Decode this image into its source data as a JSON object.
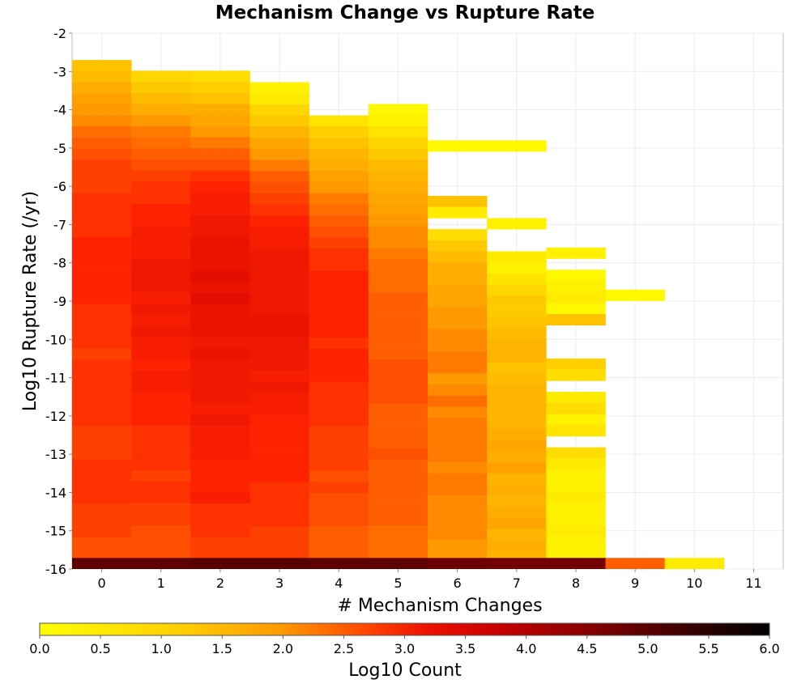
{
  "chart_data": {
    "type": "heatmap",
    "title": "Mechanism Change vs Rupture Rate",
    "xlabel": "# Mechanism Changes",
    "ylabel": "Log10 Rupture Rate (/yr)",
    "colorbar_label": "Log10 Count",
    "x_ticks": [
      "0",
      "1",
      "2",
      "3",
      "4",
      "5",
      "6",
      "7",
      "8",
      "9",
      "10",
      "11"
    ],
    "y_ticks": [
      "-2",
      "-3",
      "-4",
      "-5",
      "-6",
      "-7",
      "-8",
      "-9",
      "-10",
      "-11",
      "-12",
      "-13",
      "-14",
      "-15",
      "-16"
    ],
    "colorbar_ticks": [
      "0.0",
      "0.5",
      "1.0",
      "1.5",
      "2.0",
      "2.5",
      "3.0",
      "3.5",
      "4.0",
      "4.5",
      "5.0",
      "5.5",
      "6.0"
    ],
    "xlim": [
      -0.5,
      11.5
    ],
    "ylim": [
      -16,
      -2
    ],
    "colorbar_range": [
      0,
      6
    ],
    "grid": true,
    "colorscale": [
      "#ffff00",
      "#ff9900",
      "#ff2200",
      "#cc0000",
      "#880000",
      "#000000"
    ],
    "bin_height": 0.29,
    "columns": [
      {
        "x": 0,
        "top": -2.7,
        "values": [
          0.9,
          1.0,
          1.2,
          1.4,
          1.5,
          1.6,
          1.8,
          1.9,
          2.0,
          2.1,
          2.1,
          2.1,
          2.2,
          2.2,
          2.2,
          2.2,
          2.3,
          2.3,
          2.3,
          2.3,
          2.3,
          2.3,
          2.2,
          2.2,
          2.2,
          2.2,
          2.1,
          2.2,
          2.2,
          2.2,
          2.2,
          2.2,
          2.2,
          2.1,
          2.1,
          2.1,
          2.2,
          2.2,
          2.2,
          2.2,
          2.1,
          2.1,
          2.1,
          2.0,
          2.0,
          2.0,
          2.0
        ]
      },
      {
        "x": 1,
        "top": -2.98,
        "values": [
          0.6,
          0.8,
          1.0,
          1.2,
          1.5,
          1.7,
          1.8,
          1.9,
          2.0,
          2.1,
          2.2,
          2.2,
          2.3,
          2.3,
          2.4,
          2.4,
          2.4,
          2.5,
          2.5,
          2.5,
          2.4,
          2.5,
          2.4,
          2.5,
          2.4,
          2.4,
          2.3,
          2.4,
          2.4,
          2.3,
          2.3,
          2.3,
          2.2,
          2.2,
          2.2,
          2.2,
          2.1,
          2.2,
          2.2,
          2.1,
          2.1,
          2.0,
          2.0,
          2.0,
          1.9,
          1.9
        ]
      },
      {
        "x": 2,
        "top": -2.98,
        "values": [
          0.5,
          0.7,
          0.9,
          1.2,
          1.3,
          1.5,
          1.7,
          1.9,
          2.0,
          2.2,
          2.3,
          2.4,
          2.4,
          2.5,
          2.5,
          2.6,
          2.6,
          2.6,
          2.7,
          2.6,
          2.7,
          2.6,
          2.6,
          2.6,
          2.5,
          2.6,
          2.5,
          2.5,
          2.5,
          2.5,
          2.4,
          2.5,
          2.4,
          2.4,
          2.4,
          2.3,
          2.3,
          2.3,
          2.4,
          2.2,
          2.2,
          2.2,
          2.1,
          2.1,
          2.0,
          2.0
        ]
      },
      {
        "x": 3,
        "top": -3.28,
        "values": [
          0.2,
          0.3,
          0.6,
          0.8,
          1.1,
          1.3,
          1.5,
          1.7,
          1.9,
          2.0,
          2.1,
          2.2,
          2.3,
          2.4,
          2.4,
          2.5,
          2.5,
          2.5,
          2.5,
          2.5,
          2.5,
          2.6,
          2.6,
          2.5,
          2.5,
          2.5,
          2.4,
          2.5,
          2.4,
          2.4,
          2.3,
          2.3,
          2.3,
          2.3,
          2.3,
          2.3,
          2.2,
          2.2,
          2.2,
          2.2,
          2.1,
          2.1,
          2.1,
          2.1,
          2.0
        ]
      },
      {
        "x": 4,
        "top": -4.15,
        "values": [
          0.4,
          0.7,
          0.9,
          1.1,
          1.2,
          1.4,
          1.5,
          1.7,
          1.8,
          1.9,
          2.0,
          2.1,
          2.2,
          2.2,
          2.3,
          2.3,
          2.3,
          2.3,
          2.3,
          2.3,
          2.2,
          2.3,
          2.3,
          2.3,
          2.2,
          2.2,
          2.2,
          2.2,
          2.1,
          2.1,
          2.1,
          2.1,
          2.0,
          2.1,
          2.0,
          2.0,
          2.0,
          1.9,
          1.9,
          1.9,
          1.9,
          1.9
        ]
      },
      {
        "x": 5,
        "top": -3.85,
        "values": [
          0.1,
          0.2,
          0.4,
          0.6,
          0.8,
          1.0,
          1.1,
          1.2,
          1.3,
          1.4,
          1.5,
          1.6,
          1.6,
          1.7,
          1.8,
          1.8,
          1.8,
          1.9,
          1.9,
          1.9,
          1.9,
          1.9,
          1.9,
          2.0,
          2.0,
          2.0,
          2.0,
          1.9,
          1.9,
          1.9,
          1.9,
          2.0,
          1.9,
          1.9,
          1.9,
          1.9,
          1.9,
          1.9,
          1.8,
          1.8,
          1.8,
          1.7,
          1.7
        ]
      },
      {
        "x": 6,
        "top": -4.8,
        "values": [
          0.1,
          null,
          null,
          null,
          null,
          0.9,
          0.3,
          null,
          0.5,
          0.8,
          1.0,
          1.2,
          1.2,
          1.3,
          1.3,
          1.5,
          1.5,
          1.6,
          1.6,
          1.7,
          1.7,
          1.5,
          1.6,
          1.8,
          1.6,
          1.7,
          1.7,
          1.7,
          1.7,
          1.6,
          1.7,
          1.7,
          1.6,
          1.6,
          1.6,
          1.6,
          1.5,
          1.5,
          1.5,
          1.6,
          1.5,
          1.5,
          1.5,
          1.5
        ]
      },
      {
        "x": 7,
        "top": -4.8,
        "values": [
          0.1,
          null,
          null,
          null,
          null,
          null,
          null,
          0.2,
          null,
          null,
          0.3,
          0.2,
          0.4,
          0.6,
          0.8,
          0.8,
          0.9,
          1.0,
          1.1,
          1.1,
          0.9,
          1.0,
          1.1,
          1.1,
          1.1,
          1.1,
          1.2,
          1.3,
          1.2,
          1.4,
          1.1,
          1.2,
          1.1,
          1.2,
          1.3,
          1.1,
          1.2,
          1.1,
          0.8,
          1.0,
          1.2,
          1.0,
          1.2,
          1.1,
          1.0
        ]
      },
      {
        "x": 8,
        "top": -7.6,
        "values": [
          0.2,
          null,
          0.1,
          0.2,
          0.3,
          0.1,
          0.9,
          null,
          null,
          null,
          0.7,
          0.5,
          null,
          0.3,
          0.5,
          0.2,
          0.4,
          null,
          0.5,
          0.3,
          0.2,
          0.2,
          0.3,
          0.2,
          0.2,
          0.3,
          0.2,
          0.2,
          0.3,
          0.1,
          0.1,
          0.1,
          0.1,
          0.1,
          0.1,
          0.1,
          0.1,
          0.1,
          0.1
        ]
      },
      {
        "x": 9,
        "top": -8.7,
        "values": [
          0.1
        ]
      },
      {
        "x": 10,
        "top": -15.97,
        "values": []
      },
      {
        "x": 11,
        "top": -15.97,
        "values": []
      }
    ],
    "bottom_bins": [
      4.6,
      4.6,
      4.7,
      4.7,
      4.6,
      4.6,
      4.4,
      4.3,
      4.3,
      1.9,
      0.3,
      null
    ]
  }
}
